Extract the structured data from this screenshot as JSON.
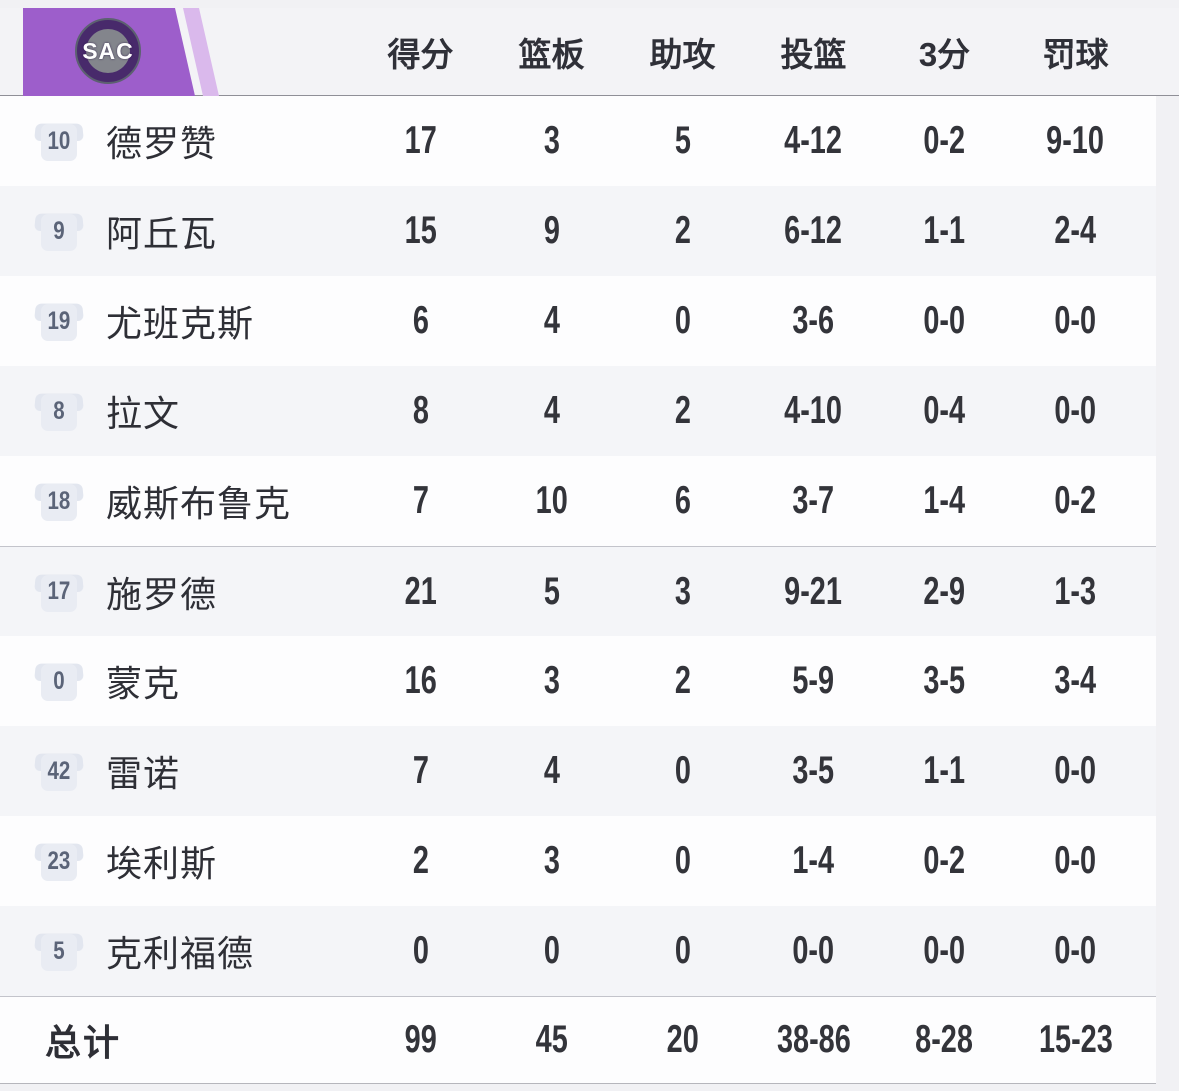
{
  "team": {
    "abbr": "SAC"
  },
  "colors": {
    "banner": "#9d5ecb",
    "banner_stripe": "#dab9ec",
    "logo_circle": "#482a6b",
    "row_stripe": "#f4f5f8",
    "page_bg": "#f1f1f4",
    "text_dark": "#33343a",
    "jersey_number": "#5b6478"
  },
  "table": {
    "columns": [
      "得分",
      "篮板",
      "助攻",
      "投篮",
      "3分",
      "罚球"
    ],
    "starters_count": 5,
    "rows": [
      {
        "jersey": "10",
        "name": "德罗赞",
        "stats": [
          "17",
          "3",
          "5",
          "4-12",
          "0-2",
          "9-10"
        ]
      },
      {
        "jersey": "9",
        "name": "阿丘瓦",
        "stats": [
          "15",
          "9",
          "2",
          "6-12",
          "1-1",
          "2-4"
        ]
      },
      {
        "jersey": "19",
        "name": "尤班克斯",
        "stats": [
          "6",
          "4",
          "0",
          "3-6",
          "0-0",
          "0-0"
        ]
      },
      {
        "jersey": "8",
        "name": "拉文",
        "stats": [
          "8",
          "4",
          "2",
          "4-10",
          "0-4",
          "0-0"
        ]
      },
      {
        "jersey": "18",
        "name": "威斯布鲁克",
        "stats": [
          "7",
          "10",
          "6",
          "3-7",
          "1-4",
          "0-2"
        ]
      },
      {
        "jersey": "17",
        "name": "施罗德",
        "stats": [
          "21",
          "5",
          "3",
          "9-21",
          "2-9",
          "1-3"
        ]
      },
      {
        "jersey": "0",
        "name": "蒙克",
        "stats": [
          "16",
          "3",
          "2",
          "5-9",
          "3-5",
          "3-4"
        ]
      },
      {
        "jersey": "42",
        "name": "雷诺",
        "stats": [
          "7",
          "4",
          "0",
          "3-5",
          "1-1",
          "0-0"
        ]
      },
      {
        "jersey": "23",
        "name": "埃利斯",
        "stats": [
          "2",
          "3",
          "0",
          "1-4",
          "0-2",
          "0-0"
        ]
      },
      {
        "jersey": "5",
        "name": "克利福德",
        "stats": [
          "0",
          "0",
          "0",
          "0-0",
          "0-0",
          "0-0"
        ]
      }
    ],
    "totals": {
      "label": "总计",
      "stats": [
        "99",
        "45",
        "20",
        "38-86",
        "8-28",
        "15-23"
      ]
    }
  }
}
